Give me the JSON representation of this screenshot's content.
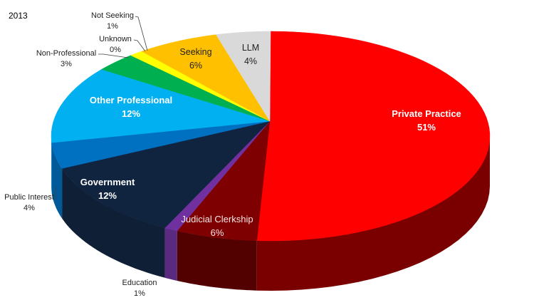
{
  "chart_data": {
    "type": "pie",
    "style": "3d-pie",
    "title": "2013",
    "start_angle_deg": 0,
    "direction": "clockwise",
    "slices": [
      {
        "label": "Private Practice",
        "value": 51,
        "display": "51%",
        "top_color": "#ff0000",
        "side_color": "#7a0000"
      },
      {
        "label": "Judicial Clerkship",
        "value": 6,
        "display": "6%",
        "top_color": "#7f0000",
        "side_color": "#520000"
      },
      {
        "label": "Education",
        "value": 1,
        "display": "1%",
        "top_color": "#7030a0",
        "side_color": "#5a2a80"
      },
      {
        "label": "Government",
        "value": 12,
        "display": "12%",
        "top_color": "#10233f",
        "side_color": "#0e1f36"
      },
      {
        "label": "Public Interest",
        "value": 4,
        "display": "4%",
        "top_color": "#0070c0",
        "side_color": "#005a9a"
      },
      {
        "label": "Other Professional",
        "value": 12,
        "display": "12%",
        "top_color": "#00b0f0",
        "side_color": "#008cc0"
      },
      {
        "label": "Non-Professional",
        "value": 3,
        "display": "3%",
        "top_color": "#00b050",
        "side_color": "#008a3e"
      },
      {
        "label": "Unknown",
        "value": 0,
        "display": "0%",
        "top_color": "#92d050",
        "side_color": "#74a640"
      },
      {
        "label": "Not Seeking",
        "value": 1,
        "display": "1%",
        "top_color": "#ffff00",
        "side_color": "#cccc00"
      },
      {
        "label": "Seeking",
        "value": 6,
        "display": "6%",
        "top_color": "#ffc000",
        "side_color": "#cc9a00"
      },
      {
        "label": "LLM",
        "value": 4,
        "display": "4%",
        "top_color": "#d9d9d9",
        "side_color": "#aeaeae"
      }
    ]
  },
  "labels": {
    "year": "2013",
    "private_practice": {
      "name": "Private Practice",
      "pct": "51%"
    },
    "judicial_clerkship": {
      "name": "Judicial Clerkship",
      "pct": "6%"
    },
    "education": {
      "name": "Education",
      "pct": "1%"
    },
    "government": {
      "name": "Government",
      "pct": "12%"
    },
    "public_interest": {
      "name": "Public Interest",
      "pct": "4%"
    },
    "other_professional": {
      "name": "Other Professional",
      "pct": "12%"
    },
    "non_professional": {
      "name": "Non-Professional",
      "pct": "3%"
    },
    "unknown": {
      "name": "Unknown",
      "pct": "0%"
    },
    "not_seeking": {
      "name": "Not Seeking",
      "pct": "1%"
    },
    "seeking": {
      "name": "Seeking",
      "pct": "6%"
    },
    "llm": {
      "name": "LLM",
      "pct": "4%"
    }
  }
}
